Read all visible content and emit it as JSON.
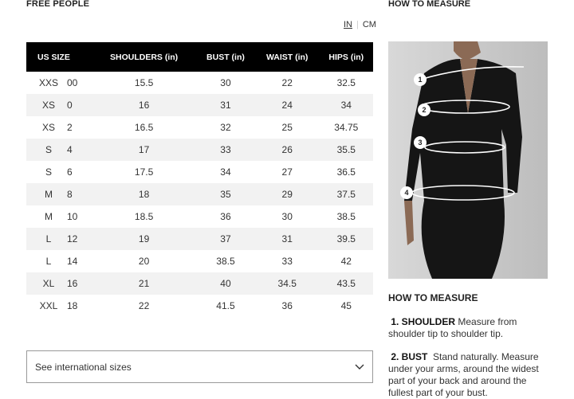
{
  "brand": "FREE PEOPLE",
  "units": {
    "in": "IN",
    "cm": "CM",
    "selected": "IN"
  },
  "table": {
    "headers": [
      "US SIZE",
      "SHOULDERS (in)",
      "BUST (in)",
      "WAIST (in)",
      "HIPS (in)"
    ],
    "rows": [
      [
        "XXS",
        "00",
        "15.5",
        "30",
        "22",
        "32.5"
      ],
      [
        "XS",
        "0",
        "16",
        "31",
        "24",
        "34"
      ],
      [
        "XS",
        "2",
        "16.5",
        "32",
        "25",
        "34.75"
      ],
      [
        "S",
        "4",
        "17",
        "33",
        "26",
        "35.5"
      ],
      [
        "S",
        "6",
        "17.5",
        "34",
        "27",
        "36.5"
      ],
      [
        "M",
        "8",
        "18",
        "35",
        "29",
        "37.5"
      ],
      [
        "M",
        "10",
        "18.5",
        "36",
        "30",
        "38.5"
      ],
      [
        "L",
        "12",
        "19",
        "37",
        "31",
        "39.5"
      ],
      [
        "L",
        "14",
        "20",
        "38.5",
        "33",
        "42"
      ],
      [
        "XL",
        "16",
        "21",
        "40",
        "34.5",
        "43.5"
      ],
      [
        "XXL",
        "18",
        "22",
        "41.5",
        "36",
        "45"
      ]
    ]
  },
  "dropdown": {
    "label": "See international sizes",
    "icon": "chevron-down-icon"
  },
  "measure": {
    "top_title": "HOW TO MEASURE",
    "title": "HOW TO MEASURE",
    "photo_markers": [
      "1",
      "2",
      "3",
      "4"
    ],
    "steps": [
      {
        "label": "1. SHOULDER",
        "text": "Measure from shoulder tip to shoulder tip."
      },
      {
        "label": "2. BUST",
        "text": "Stand naturally. Measure under your arms, around the widest part of your back and around the fullest part of your bust."
      }
    ]
  }
}
